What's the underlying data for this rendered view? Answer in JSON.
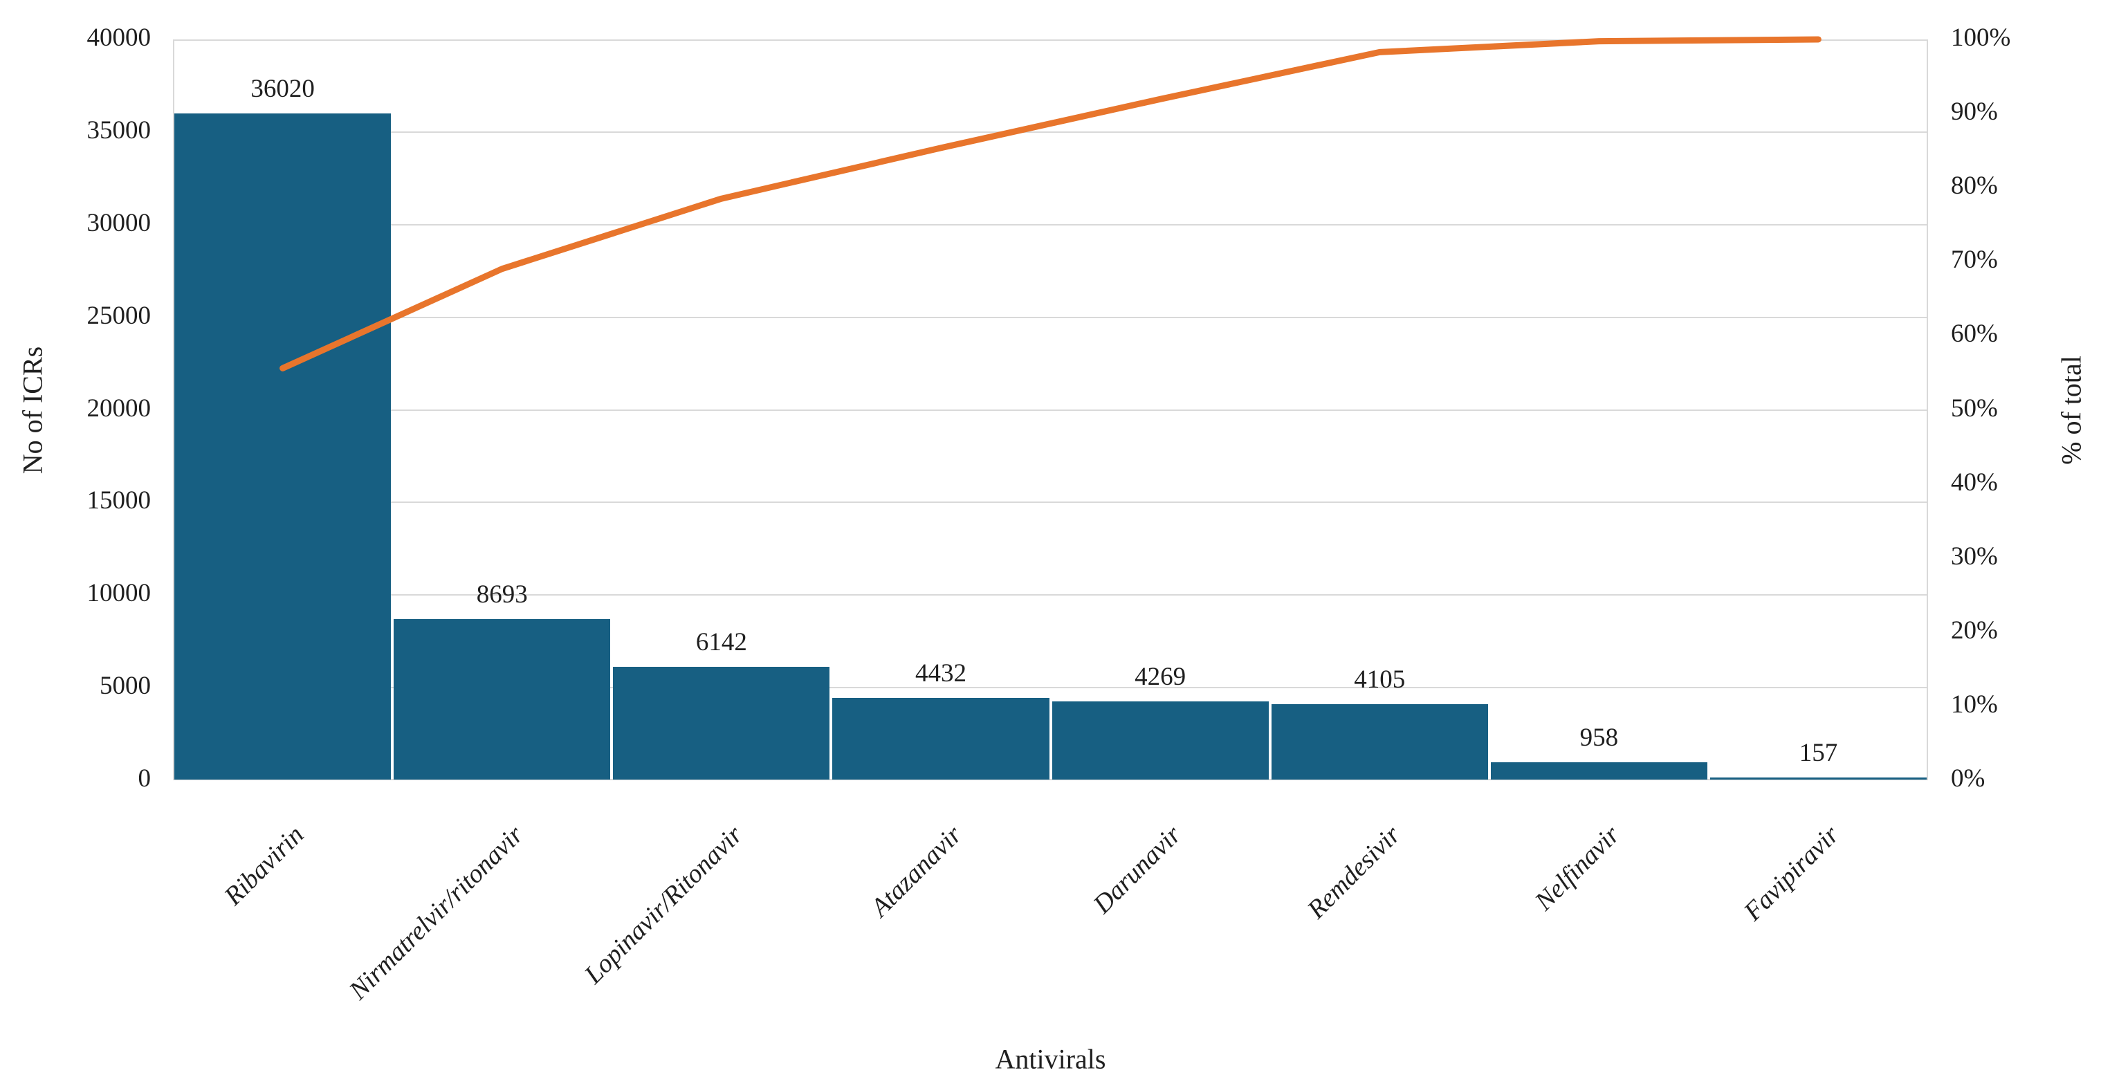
{
  "chart_data": {
    "type": "bar",
    "subtype": "pareto-bar-with-cumulative-line",
    "categories": [
      "Ribavirin",
      "Nirmatrelvir/ritonavir",
      "Lopinavir/Ritonavir",
      "Atazanavir",
      "Darunavir",
      "Remdesivir",
      "Nelfinavir",
      "Favipiravir"
    ],
    "series": [
      {
        "name": "No of ICRs",
        "type": "bar",
        "axis": "left",
        "values": [
          36020,
          8693,
          6142,
          4432,
          4269,
          4105,
          958,
          157
        ],
        "data_labels": [
          "36020",
          "8693",
          "6142",
          "4432",
          "4269",
          "4105",
          "958",
          "157"
        ],
        "color": "#175f82"
      },
      {
        "name": "Cumulative % of total",
        "type": "line",
        "axis": "right",
        "values_pct": [
          55.61,
          69.03,
          78.51,
          85.35,
          91.94,
          98.28,
          99.76,
          100.0
        ],
        "color": "#e8752c"
      }
    ],
    "x_axis": {
      "title": "Antivirals"
    },
    "left_axis": {
      "title": "No of ICRs",
      "min": 0,
      "max": 40000,
      "step": 5000,
      "tick_labels": [
        "0",
        "5000",
        "10000",
        "15000",
        "20000",
        "25000",
        "30000",
        "35000",
        "40000"
      ]
    },
    "right_axis": {
      "title": "% of total",
      "min": 0,
      "max": 100,
      "step": 10,
      "tick_labels": [
        "0%",
        "10%",
        "20%",
        "30%",
        "40%",
        "50%",
        "60%",
        "70%",
        "80%",
        "90%",
        "100%"
      ]
    },
    "legend": "none",
    "grid": "horizontal gridlines at left-axis steps",
    "colors": {
      "bar": "#175f82",
      "line": "#e8752c",
      "grid": "#d9d9d9",
      "text": "#1f1f1f",
      "background": "#ffffff"
    }
  }
}
